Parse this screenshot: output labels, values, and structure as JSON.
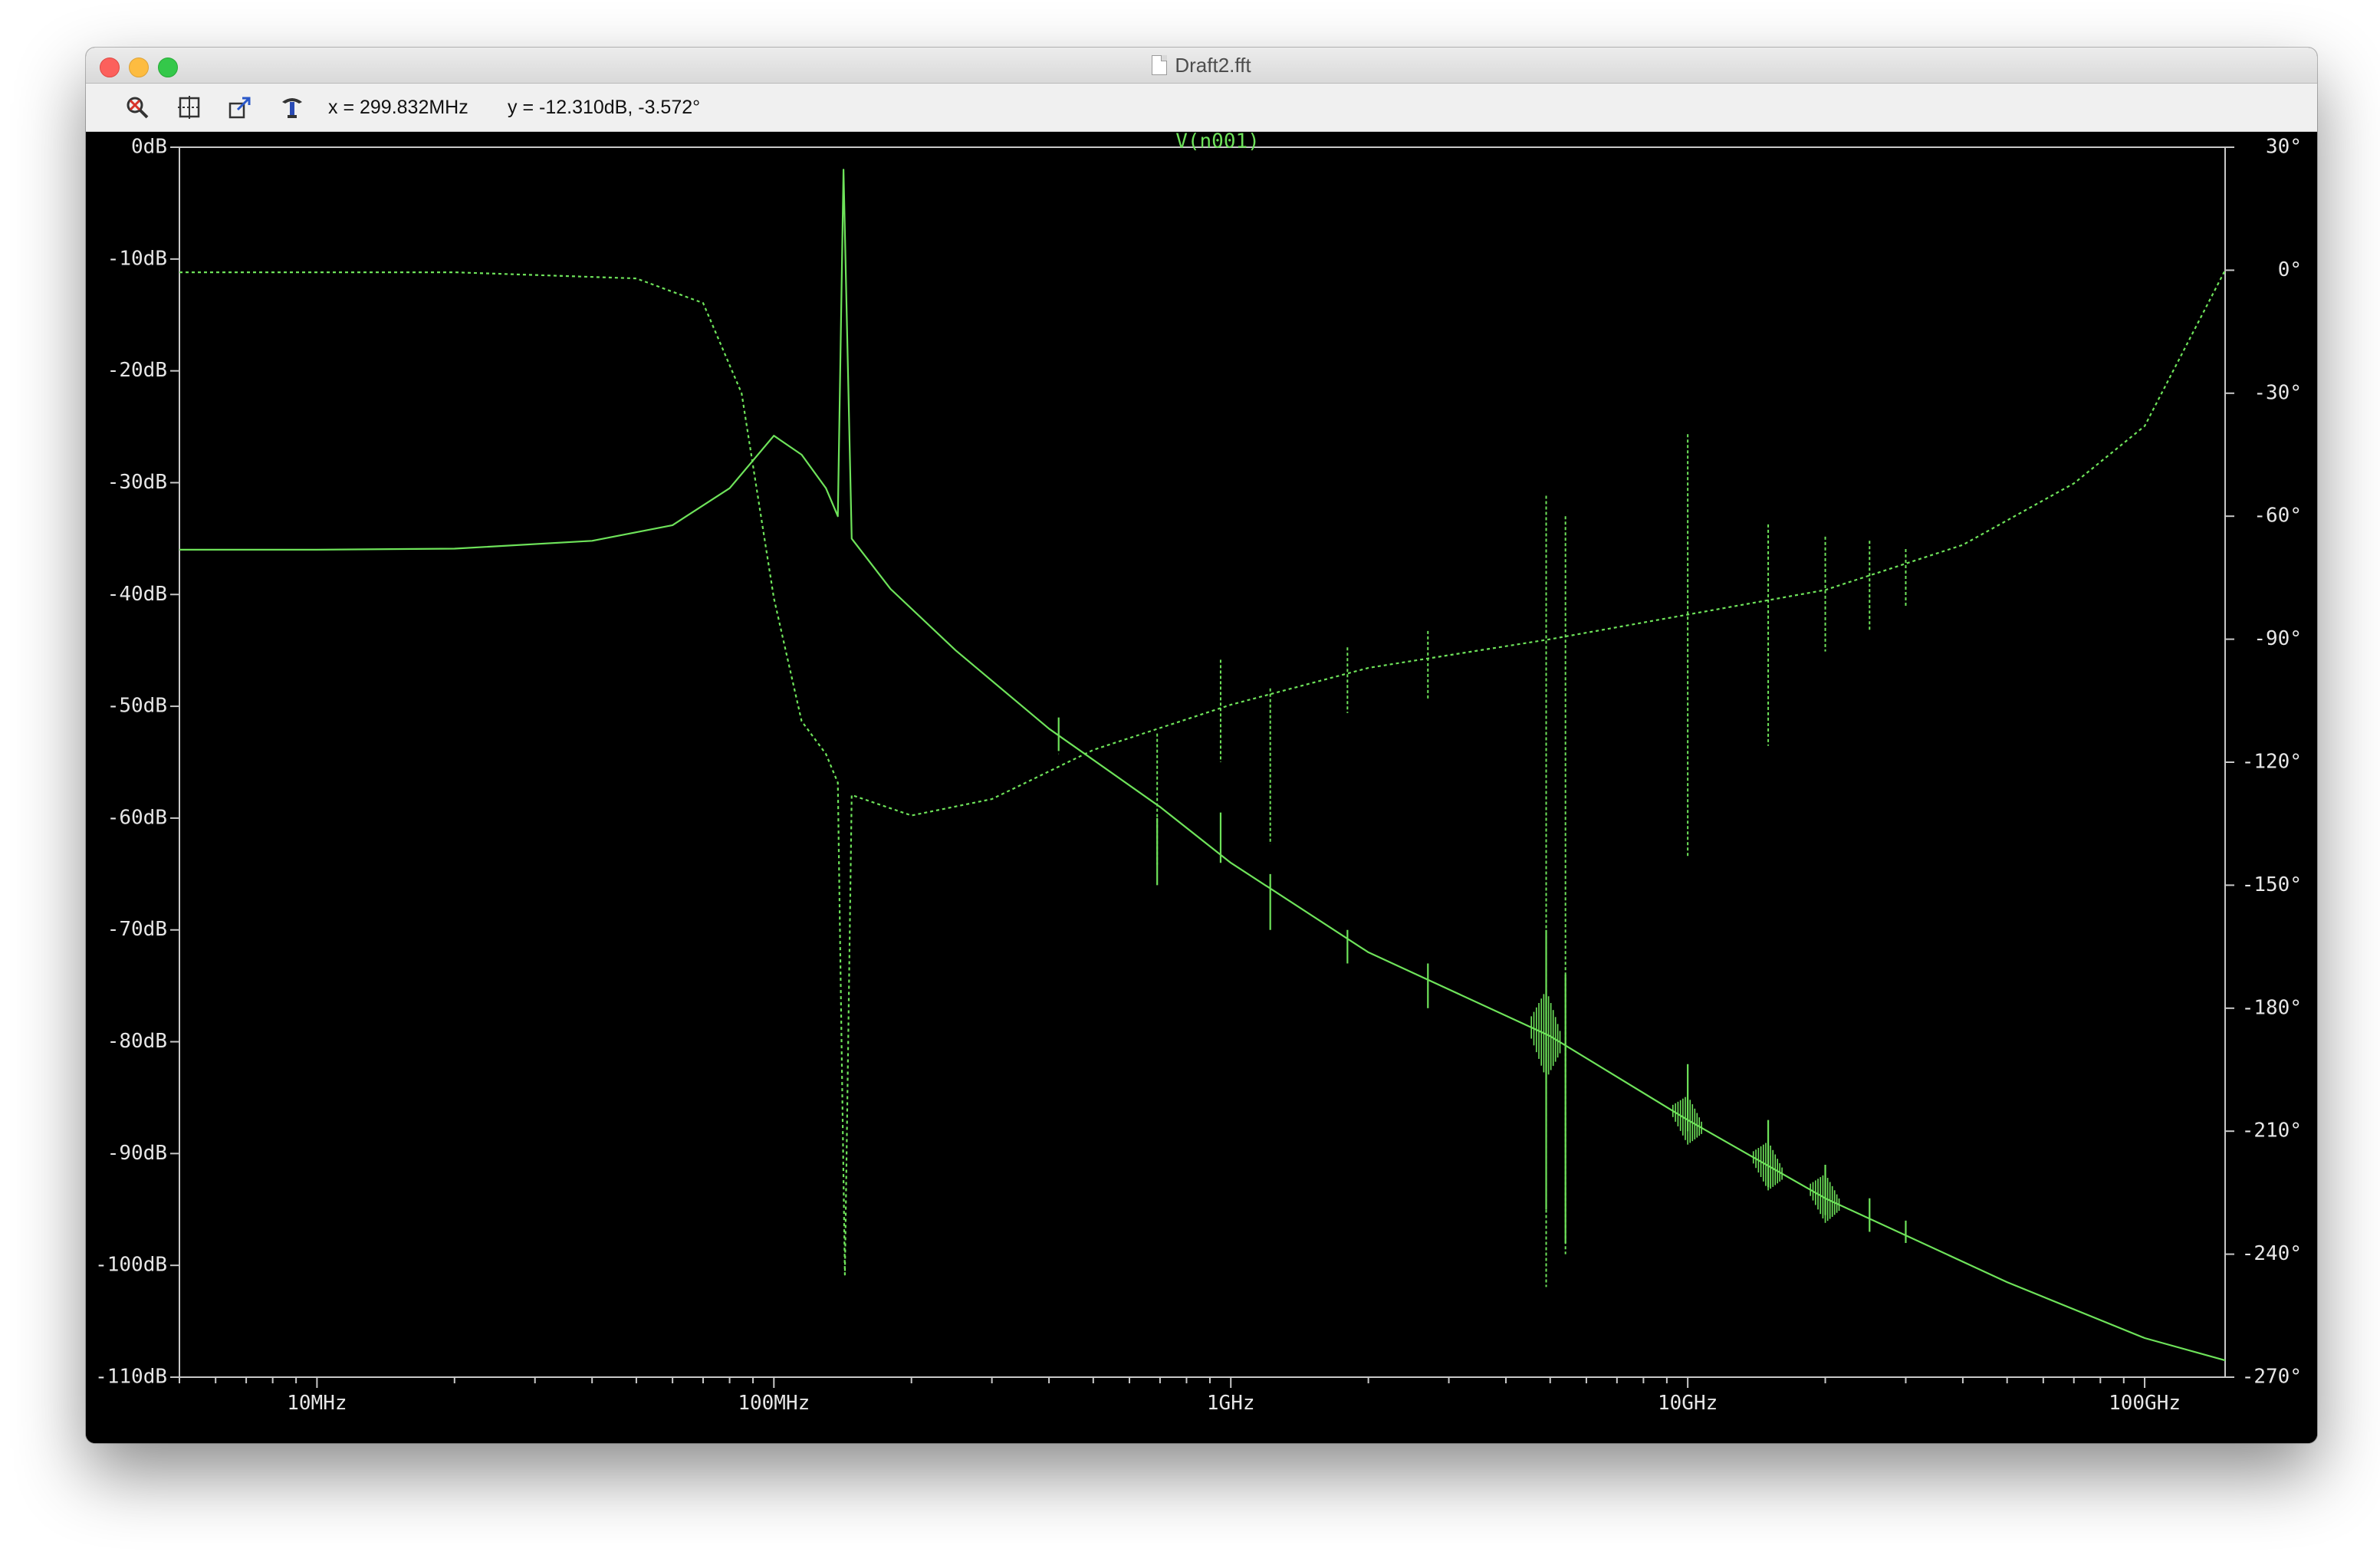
{
  "window": {
    "title": "Draft2.fft"
  },
  "toolbar": {
    "icons": [
      "zoom-cancel-icon",
      "zoom-extents-icon",
      "pan-undo-icon",
      "cursor-probe-icon"
    ],
    "x_readout": "x = 299.832MHz",
    "y_readout": "y = -12.310dB, -3.572°"
  },
  "colors": {
    "trace": "#6ee35a",
    "axis": "#c8c8c8",
    "background": "#000000",
    "left_tick_text": "#e6e6e6"
  },
  "chart_data": {
    "type": "line",
    "title": "V(n001)",
    "x_scale": "log",
    "xlim_hz": [
      5000000,
      150000000000
    ],
    "x_ticks": [
      {
        "value": 10000000,
        "label": "10MHz"
      },
      {
        "value": 100000000,
        "label": "100MHz"
      },
      {
        "value": 1000000000,
        "label": "1GHz"
      },
      {
        "value": 10000000000,
        "label": "10GHz"
      },
      {
        "value": 100000000000,
        "label": "100GHz"
      }
    ],
    "y_left": {
      "unit": "dB",
      "ylim": [
        -110,
        0
      ],
      "ticks": [
        {
          "value": 0,
          "label": "0dB"
        },
        {
          "value": -10,
          "label": "-10dB"
        },
        {
          "value": -20,
          "label": "-20dB"
        },
        {
          "value": -30,
          "label": "-30dB"
        },
        {
          "value": -40,
          "label": "-40dB"
        },
        {
          "value": -50,
          "label": "-50dB"
        },
        {
          "value": -60,
          "label": "-60dB"
        },
        {
          "value": -70,
          "label": "-70dB"
        },
        {
          "value": -80,
          "label": "-80dB"
        },
        {
          "value": -90,
          "label": "-90dB"
        },
        {
          "value": -100,
          "label": "-100dB"
        },
        {
          "value": -110,
          "label": "-110dB"
        }
      ]
    },
    "y_right": {
      "unit": "degree",
      "ylim": [
        -270,
        30
      ],
      "ticks": [
        {
          "value": 30,
          "label": "30°"
        },
        {
          "value": 0,
          "label": "0°"
        },
        {
          "value": -30,
          "label": "-30°"
        },
        {
          "value": -60,
          "label": "-60°"
        },
        {
          "value": -90,
          "label": "-90°"
        },
        {
          "value": -120,
          "label": "-120°"
        },
        {
          "value": -150,
          "label": "-150°"
        },
        {
          "value": -180,
          "label": "-180°"
        },
        {
          "value": -210,
          "label": "-210°"
        },
        {
          "value": -240,
          "label": "-240°"
        },
        {
          "value": -270,
          "label": "-270°"
        }
      ]
    },
    "series": [
      {
        "kind": "magnitude",
        "axis": "left",
        "style": "solid",
        "points": [
          [
            5000000,
            -36.0
          ],
          [
            10000000,
            -36.0
          ],
          [
            20000000,
            -35.9
          ],
          [
            40000000,
            -35.2
          ],
          [
            60000000,
            -33.8
          ],
          [
            80000000,
            -30.5
          ],
          [
            100000000,
            -25.8
          ],
          [
            115000000,
            -27.5
          ],
          [
            130000000,
            -30.5
          ],
          [
            138000000,
            -33.0
          ],
          [
            142000000,
            -2.0
          ],
          [
            148000000,
            -35.0
          ],
          [
            180000000,
            -39.5
          ],
          [
            250000000,
            -45.0
          ],
          [
            400000000,
            -52.0
          ],
          [
            700000000,
            -59.0
          ],
          [
            1000000000,
            -64.0
          ],
          [
            2000000000,
            -72.0
          ],
          [
            5000000000,
            -79.5
          ],
          [
            10000000000,
            -87.0
          ],
          [
            20000000000,
            -94.0
          ],
          [
            50000000000,
            -101.5
          ],
          [
            100000000000,
            -106.5
          ],
          [
            150000000000,
            -108.5
          ]
        ]
      },
      {
        "kind": "phase",
        "axis": "right",
        "style": "dashed",
        "points": [
          [
            5000000,
            -0.5
          ],
          [
            20000000,
            -0.5
          ],
          [
            50000000,
            -2.0
          ],
          [
            70000000,
            -8.0
          ],
          [
            85000000,
            -30.0
          ],
          [
            100000000,
            -80.0
          ],
          [
            115000000,
            -110.0
          ],
          [
            130000000,
            -118.0
          ],
          [
            138000000,
            -125.0
          ],
          [
            143000000,
            -245.0
          ],
          [
            148000000,
            -128.0
          ],
          [
            200000000,
            -133.0
          ],
          [
            300000000,
            -129.0
          ],
          [
            500000000,
            -117.0
          ],
          [
            1000000000,
            -106.0
          ],
          [
            2000000000,
            -97.0
          ],
          [
            5000000000,
            -90.0
          ],
          [
            10000000000,
            -84.0
          ],
          [
            20000000000,
            -78.0
          ],
          [
            40000000000,
            -67.0
          ],
          [
            70000000000,
            -52.0
          ],
          [
            100000000000,
            -38.0
          ],
          [
            150000000000,
            0.0
          ]
        ]
      }
    ],
    "spikes": [
      {
        "hz": 420000000,
        "mag_db": -51.0,
        "mag_top_db": -51.0,
        "mag_bottom_db": -54.0,
        "ph_low": -118,
        "ph_high": -118
      },
      {
        "hz": 690000000,
        "mag_db": -66.0,
        "mag_top_db": -60.0,
        "mag_bottom_db": -66.0,
        "ph_low": -145,
        "ph_high": -113
      },
      {
        "hz": 950000000,
        "mag_db": -63.0,
        "mag_top_db": -59.5,
        "mag_bottom_db": -64.0,
        "ph_low": -120,
        "ph_high": -95
      },
      {
        "hz": 1220000000,
        "mag_db": -70.0,
        "mag_top_db": -65.0,
        "mag_bottom_db": -70.0,
        "ph_low": -140,
        "ph_high": -102
      },
      {
        "hz": 1800000000,
        "mag_db": -71.0,
        "mag_top_db": -70.0,
        "mag_bottom_db": -73.0,
        "ph_low": -108,
        "ph_high": -92
      },
      {
        "hz": 2700000000,
        "mag_db": -75.0,
        "mag_top_db": -73.0,
        "mag_bottom_db": -77.0,
        "ph_low": -105,
        "ph_high": -88
      },
      {
        "hz": 4900000000,
        "mag_db": -95.0,
        "mag_top_db": -70.0,
        "mag_bottom_db": -95.0,
        "ph_low": -248,
        "ph_high": -55
      },
      {
        "hz": 5400000000,
        "mag_db": -98.0,
        "mag_top_db": -74.0,
        "mag_bottom_db": -98.0,
        "ph_low": -240,
        "ph_high": -60
      },
      {
        "hz": 10000000000,
        "mag_db": -86.0,
        "mag_top_db": -82.0,
        "mag_bottom_db": -88.0,
        "ph_low": -143,
        "ph_high": -40
      },
      {
        "hz": 15000000000,
        "mag_db": -89.5,
        "mag_top_db": -87.0,
        "mag_bottom_db": -93.0,
        "ph_low": -116,
        "ph_high": -62
      },
      {
        "hz": 20000000000,
        "mag_db": -93.0,
        "mag_top_db": -91.0,
        "mag_bottom_db": -95.5,
        "ph_low": -93,
        "ph_high": -65
      },
      {
        "hz": 25000000000,
        "mag_db": -95.5,
        "mag_top_db": -94.0,
        "mag_bottom_db": -97.0,
        "ph_low": -88,
        "ph_high": -66
      },
      {
        "hz": 30000000000,
        "mag_db": -97.0,
        "mag_top_db": -96.0,
        "mag_bottom_db": -98.0,
        "ph_low": -82,
        "ph_high": -68
      }
    ]
  }
}
